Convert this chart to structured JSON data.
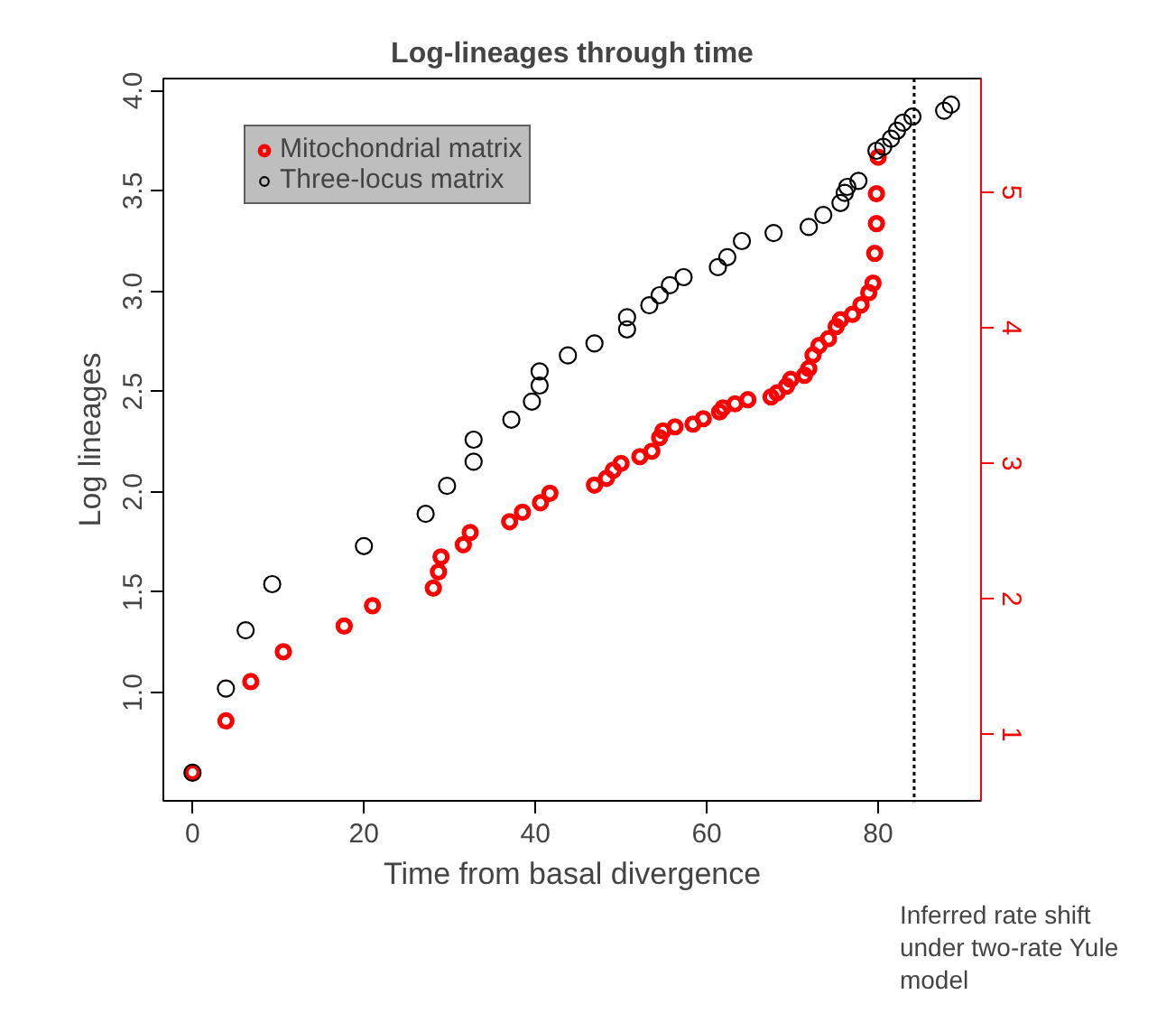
{
  "chart_data": {
    "type": "scatter",
    "title": "Log-lineages through time",
    "xlabel": "Time from basal divergence",
    "ylabel": "Log lineages",
    "xlim": [
      -3.4,
      92
    ],
    "xticks": [
      0,
      20,
      40,
      60,
      80
    ],
    "ylim": [
      0.46,
      4.06
    ],
    "yticks": [
      {
        "value": 1.0,
        "label": "1.0"
      },
      {
        "value": 1.5,
        "label": "1.5"
      },
      {
        "value": 2.0,
        "label": "2.0"
      },
      {
        "value": 2.5,
        "label": "2.5"
      },
      {
        "value": 3.0,
        "label": "3.0"
      },
      {
        "value": 3.5,
        "label": "3.5"
      },
      {
        "value": 4.0,
        "label": "4.0"
      }
    ],
    "y2lim": [
      0.51,
      5.84
    ],
    "y2ticks": [
      1,
      2,
      3,
      4,
      5
    ],
    "grid": false,
    "legend": "top left",
    "marker": "circle",
    "ref_lines": [
      {
        "axis": "x",
        "value": 84.2,
        "label": "Inferred rate shift under two-rate Yule model",
        "color": "#000000",
        "line_style": "dotted"
      }
    ],
    "series": [
      {
        "name": "Mitochondrial matrix",
        "color": "#ff0000",
        "axis": "y2",
        "x": [
          0,
          3.9,
          6.8,
          10.6,
          17.7,
          21.0,
          28.1,
          28.7,
          29.0,
          31.6,
          32.4,
          37.0,
          38.5,
          40.6,
          41.7,
          46.9,
          48.3,
          49.1,
          50.0,
          52.2,
          53.6,
          54.5,
          54.9,
          56.3,
          58.4,
          59.6,
          61.5,
          61.9,
          63.3,
          64.8,
          67.5,
          68.2,
          69.3,
          69.8,
          71.4,
          71.9,
          72.4,
          73.1,
          74.2,
          75.1,
          75.6,
          77.0,
          78.0,
          78.9,
          79.4,
          79.6,
          79.8,
          79.8,
          80.0
        ],
        "values": [
          0.72,
          1.1,
          1.39,
          1.61,
          1.8,
          1.95,
          2.08,
          2.2,
          2.31,
          2.4,
          2.49,
          2.57,
          2.64,
          2.71,
          2.78,
          2.84,
          2.89,
          2.95,
          3.0,
          3.05,
          3.09,
          3.19,
          3.24,
          3.27,
          3.29,
          3.33,
          3.38,
          3.41,
          3.44,
          3.47,
          3.49,
          3.52,
          3.57,
          3.62,
          3.65,
          3.7,
          3.8,
          3.87,
          3.92,
          4.01,
          4.06,
          4.1,
          4.17,
          4.26,
          4.33,
          4.55,
          4.77,
          4.99,
          5.26
        ]
      },
      {
        "name": "Three-locus matrix",
        "color": "#000000",
        "x": [
          0,
          3.9,
          6.2,
          9.3,
          20.0,
          27.2,
          29.7,
          32.8,
          32.8,
          37.2,
          39.6,
          40.5,
          40.5,
          43.8,
          46.9,
          50.7,
          50.7,
          53.3,
          54.5,
          55.7,
          57.3,
          61.3,
          62.4,
          64.1,
          67.8,
          71.9,
          73.6,
          75.6,
          76.1,
          76.4,
          77.7,
          79.8,
          80.6,
          81.5,
          82.2,
          82.9,
          84.0,
          87.7,
          88.5
        ],
        "values": [
          0.6,
          1.02,
          1.31,
          1.54,
          1.73,
          1.89,
          2.03,
          2.15,
          2.26,
          2.36,
          2.45,
          2.53,
          2.6,
          2.68,
          2.74,
          2.81,
          2.87,
          2.93,
          2.98,
          3.03,
          3.07,
          3.12,
          3.17,
          3.25,
          3.29,
          3.32,
          3.38,
          3.44,
          3.49,
          3.52,
          3.55,
          3.7,
          3.72,
          3.76,
          3.8,
          3.84,
          3.87,
          3.9,
          3.93
        ]
      }
    ]
  }
}
